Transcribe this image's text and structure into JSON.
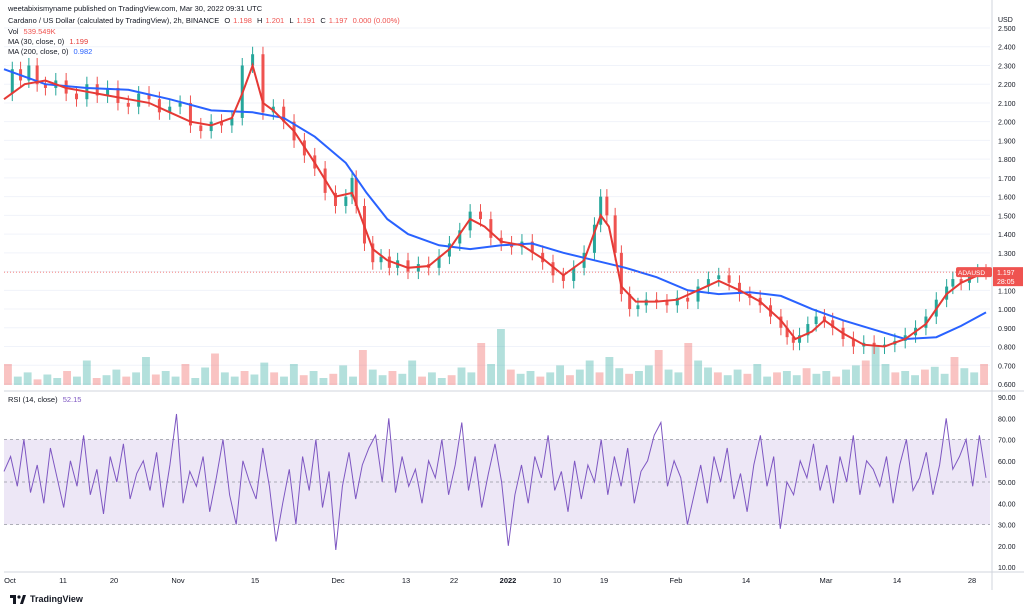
{
  "attribution": "weetabixismyname published on TradingView.com, Mar 30, 2022 09:31 UTC",
  "header": {
    "title": "Cardano / US Dollar (calculated by TradingView), 2h, BINANCE",
    "o_label": "O",
    "o": "1.198",
    "h_label": "H",
    "h": "1.201",
    "l_label": "L",
    "l": "1.191",
    "c_label": "C",
    "c": "1.197",
    "chg": "0.000 (0.00%)",
    "vol_label": "Vol",
    "vol": "539.549K",
    "ma30_label": "MA (30, close, 0)",
    "ma30": "1.199",
    "ma200_label": "MA (200, close, 0)",
    "ma200": "0.982",
    "rsi_label": "RSI (14, close)",
    "rsi": "52.15"
  },
  "footer": {
    "brand": "TradingView"
  },
  "colors": {
    "up": "#26a69a",
    "down": "#ef5350",
    "ma30": "#e53935",
    "ma200": "#2962ff",
    "rsi": "#7e57c2",
    "rsi_band": "#ede7f6",
    "grid": "#f0f3fa",
    "price_line": "#ef5350"
  },
  "chart_data": [
    {
      "type": "line",
      "title": "Cardano / US Dollar (calculated by TradingView), 2h, BINANCE",
      "currency": "USD",
      "ylim": [
        0.6,
        2.5
      ],
      "price_ticks": [
        "2.500",
        "2.400",
        "2.300",
        "2.200",
        "2.100",
        "2.000",
        "1.900",
        "1.800",
        "1.700",
        "1.600",
        "1.500",
        "1.400",
        "1.300",
        "1.200",
        "1.100",
        "1.000",
        "0.900",
        "0.800",
        "0.700",
        "0.600"
      ],
      "x_ticks": [
        "Oct",
        "11",
        "20",
        "Nov",
        "15",
        "Dec",
        "13",
        "22",
        "2022",
        "10",
        "19",
        "Feb",
        "14",
        "Mar",
        "14",
        "28"
      ],
      "current_price_label": "1.197",
      "current_symbol_label": "ADAUSD",
      "countdown_label": "28:05",
      "series": [
        {
          "name": "ADAUSD",
          "values": [
            [
              0,
              2.15
            ],
            [
              4,
              2.28
            ],
            [
              8,
              2.22
            ],
            [
              12,
              2.3
            ],
            [
              16,
              2.2
            ],
            [
              20,
              2.18
            ],
            [
              25,
              2.22
            ],
            [
              30,
              2.15
            ],
            [
              35,
              2.12
            ],
            [
              40,
              2.2
            ],
            [
              45,
              2.14
            ],
            [
              50,
              2.18
            ],
            [
              55,
              2.1
            ],
            [
              60,
              2.08
            ],
            [
              65,
              2.15
            ],
            [
              70,
              2.12
            ],
            [
              75,
              2.05
            ],
            [
              80,
              2.08
            ],
            [
              85,
              2.1
            ],
            [
              90,
              1.98
            ],
            [
              95,
              1.95
            ],
            [
              100,
              2.0
            ],
            [
              105,
              1.98
            ],
            [
              110,
              2.02
            ],
            [
              115,
              2.3
            ],
            [
              120,
              2.36
            ],
            [
              125,
              2.05
            ],
            [
              130,
              2.08
            ],
            [
              135,
              2.0
            ],
            [
              140,
              1.9
            ],
            [
              145,
              1.82
            ],
            [
              150,
              1.75
            ],
            [
              155,
              1.62
            ],
            [
              160,
              1.55
            ],
            [
              165,
              1.6
            ],
            [
              168,
              1.7
            ],
            [
              170,
              1.55
            ],
            [
              174,
              1.35
            ],
            [
              178,
              1.25
            ],
            [
              182,
              1.28
            ],
            [
              186,
              1.22
            ],
            [
              190,
              1.26
            ],
            [
              195,
              1.2
            ],
            [
              200,
              1.24
            ],
            [
              205,
              1.22
            ],
            [
              210,
              1.28
            ],
            [
              215,
              1.35
            ],
            [
              220,
              1.42
            ],
            [
              225,
              1.52
            ],
            [
              230,
              1.48
            ],
            [
              235,
              1.38
            ],
            [
              240,
              1.35
            ],
            [
              245,
              1.33
            ],
            [
              250,
              1.36
            ],
            [
              255,
              1.3
            ],
            [
              260,
              1.25
            ],
            [
              265,
              1.18
            ],
            [
              270,
              1.15
            ],
            [
              275,
              1.22
            ],
            [
              280,
              1.3
            ],
            [
              285,
              1.45
            ],
            [
              288,
              1.6
            ],
            [
              291,
              1.5
            ],
            [
              295,
              1.3
            ],
            [
              298,
              1.08
            ],
            [
              302,
              1.0
            ],
            [
              306,
              1.02
            ],
            [
              310,
              1.05
            ],
            [
              315,
              1.04
            ],
            [
              320,
              1.02
            ],
            [
              325,
              1.06
            ],
            [
              330,
              1.04
            ],
            [
              335,
              1.12
            ],
            [
              340,
              1.16
            ],
            [
              345,
              1.18
            ],
            [
              350,
              1.14
            ],
            [
              355,
              1.08
            ],
            [
              360,
              1.06
            ],
            [
              365,
              1.02
            ],
            [
              370,
              0.96
            ],
            [
              375,
              0.9
            ],
            [
              378,
              0.85
            ],
            [
              381,
              0.82
            ],
            [
              384,
              0.86
            ],
            [
              388,
              0.92
            ],
            [
              392,
              0.96
            ],
            [
              396,
              0.94
            ],
            [
              400,
              0.9
            ],
            [
              405,
              0.84
            ],
            [
              410,
              0.8
            ],
            [
              415,
              0.82
            ],
            [
              420,
              0.8
            ],
            [
              425,
              0.81
            ],
            [
              430,
              0.83
            ],
            [
              435,
              0.86
            ],
            [
              440,
              0.9
            ],
            [
              445,
              0.96
            ],
            [
              450,
              1.05
            ],
            [
              455,
              1.12
            ],
            [
              458,
              1.16
            ],
            [
              462,
              1.14
            ],
            [
              466,
              1.18
            ],
            [
              470,
              1.2
            ],
            [
              474,
              1.197
            ]
          ]
        },
        {
          "name": "MA (30, close, 0)",
          "values": [
            [
              0,
              2.12
            ],
            [
              10,
              2.2
            ],
            [
              20,
              2.22
            ],
            [
              30,
              2.18
            ],
            [
              40,
              2.16
            ],
            [
              50,
              2.14
            ],
            [
              60,
              2.12
            ],
            [
              70,
              2.1
            ],
            [
              80,
              2.05
            ],
            [
              90,
              2.0
            ],
            [
              100,
              1.98
            ],
            [
              110,
              2.02
            ],
            [
              115,
              2.15
            ],
            [
              120,
              2.3
            ],
            [
              125,
              2.1
            ],
            [
              130,
              2.06
            ],
            [
              140,
              1.95
            ],
            [
              150,
              1.78
            ],
            [
              160,
              1.6
            ],
            [
              168,
              1.62
            ],
            [
              172,
              1.5
            ],
            [
              178,
              1.32
            ],
            [
              185,
              1.26
            ],
            [
              195,
              1.22
            ],
            [
              205,
              1.23
            ],
            [
              215,
              1.32
            ],
            [
              225,
              1.48
            ],
            [
              232,
              1.44
            ],
            [
              240,
              1.36
            ],
            [
              250,
              1.34
            ],
            [
              260,
              1.27
            ],
            [
              270,
              1.18
            ],
            [
              280,
              1.26
            ],
            [
              288,
              1.5
            ],
            [
              292,
              1.44
            ],
            [
              298,
              1.12
            ],
            [
              305,
              1.04
            ],
            [
              315,
              1.04
            ],
            [
              325,
              1.05
            ],
            [
              335,
              1.1
            ],
            [
              345,
              1.15
            ],
            [
              355,
              1.1
            ],
            [
              365,
              1.04
            ],
            [
              375,
              0.94
            ],
            [
              382,
              0.84
            ],
            [
              390,
              0.88
            ],
            [
              396,
              0.94
            ],
            [
              405,
              0.87
            ],
            [
              415,
              0.81
            ],
            [
              425,
              0.8
            ],
            [
              435,
              0.84
            ],
            [
              445,
              0.92
            ],
            [
              455,
              1.08
            ],
            [
              462,
              1.14
            ],
            [
              474,
              1.199
            ]
          ]
        },
        {
          "name": "MA (200, close, 0)",
          "values": [
            [
              0,
              2.28
            ],
            [
              20,
              2.2
            ],
            [
              40,
              2.18
            ],
            [
              60,
              2.17
            ],
            [
              80,
              2.12
            ],
            [
              100,
              2.06
            ],
            [
              120,
              2.05
            ],
            [
              135,
              2.02
            ],
            [
              150,
              1.92
            ],
            [
              165,
              1.78
            ],
            [
              175,
              1.62
            ],
            [
              185,
              1.48
            ],
            [
              195,
              1.4
            ],
            [
              210,
              1.34
            ],
            [
              225,
              1.32
            ],
            [
              240,
              1.34
            ],
            [
              255,
              1.35
            ],
            [
              270,
              1.3
            ],
            [
              285,
              1.26
            ],
            [
              300,
              1.22
            ],
            [
              315,
              1.17
            ],
            [
              330,
              1.1
            ],
            [
              345,
              1.08
            ],
            [
              360,
              1.09
            ],
            [
              375,
              1.07
            ],
            [
              390,
              1.0
            ],
            [
              405,
              0.94
            ],
            [
              420,
              0.89
            ],
            [
              435,
              0.84
            ],
            [
              450,
              0.85
            ],
            [
              462,
              0.91
            ],
            [
              474,
              0.982
            ]
          ]
        }
      ]
    },
    {
      "type": "bar",
      "title": "Vol",
      "series": [
        {
          "name": "Vol",
          "values": [
            0.3,
            0.12,
            0.18,
            0.08,
            0.15,
            0.1,
            0.2,
            0.12,
            0.35,
            0.1,
            0.14,
            0.22,
            0.12,
            0.18,
            0.4,
            0.15,
            0.2,
            0.12,
            0.3,
            0.1,
            0.25,
            0.45,
            0.18,
            0.12,
            0.2,
            0.15,
            0.32,
            0.18,
            0.12,
            0.3,
            0.14,
            0.2,
            0.1,
            0.16,
            0.28,
            0.12,
            0.5,
            0.22,
            0.14,
            0.2,
            0.16,
            0.35,
            0.12,
            0.18,
            0.1,
            0.14,
            0.25,
            0.18,
            0.6,
            0.3,
            0.8,
            0.22,
            0.16,
            0.2,
            0.12,
            0.18,
            0.28,
            0.14,
            0.22,
            0.35,
            0.18,
            0.4,
            0.24,
            0.16,
            0.2,
            0.28,
            0.5,
            0.22,
            0.18,
            0.6,
            0.35,
            0.25,
            0.18,
            0.14,
            0.22,
            0.16,
            0.3,
            0.12,
            0.18,
            0.2,
            0.14,
            0.24,
            0.16,
            0.2,
            0.12,
            0.22,
            0.28,
            0.35,
            0.55,
            0.3,
            0.18,
            0.2,
            0.14,
            0.22,
            0.26,
            0.16,
            0.4,
            0.24,
            0.18,
            0.3
          ]
        }
      ]
    },
    {
      "type": "line",
      "title": "RSI (14, close)",
      "ylim": [
        10,
        90
      ],
      "ticks": [
        "90.00",
        "80.00",
        "70.00",
        "60.00",
        "50.00",
        "40.00",
        "30.00",
        "20.00",
        "10.00"
      ],
      "bands": [
        70,
        50,
        30
      ],
      "series": [
        {
          "name": "RSI (14, close)",
          "values": [
            55,
            62,
            48,
            70,
            45,
            58,
            40,
            66,
            52,
            38,
            60,
            48,
            72,
            44,
            56,
            35,
            62,
            50,
            68,
            42,
            54,
            60,
            46,
            64,
            38,
            58,
            82,
            40,
            55,
            48,
            62,
            36,
            52,
            70,
            44,
            30,
            60,
            50,
            42,
            66,
            48,
            22,
            40,
            56,
            30,
            62,
            46,
            70,
            38,
            55,
            18,
            48,
            64,
            42,
            58,
            66,
            72,
            50,
            80,
            45,
            62,
            48,
            56,
            40,
            60,
            52,
            70,
            44,
            58,
            78,
            46,
            62,
            38,
            54,
            68,
            50,
            20,
            44,
            58,
            40,
            62,
            52,
            72,
            46,
            55,
            36,
            60,
            42,
            58,
            50,
            70,
            44,
            62,
            48,
            66,
            40,
            55,
            60,
            72,
            78,
            48,
            60,
            52,
            30,
            44,
            58,
            40,
            62,
            50,
            66,
            42,
            54,
            36,
            58,
            72,
            48,
            62,
            28,
            50,
            44,
            60,
            52,
            68,
            46,
            58,
            40,
            62,
            50,
            72,
            44,
            60,
            56,
            48,
            62,
            40,
            58,
            70,
            46,
            52,
            64,
            44,
            58,
            80,
            56,
            62,
            70,
            48,
            72,
            52
          ]
        }
      ]
    }
  ]
}
